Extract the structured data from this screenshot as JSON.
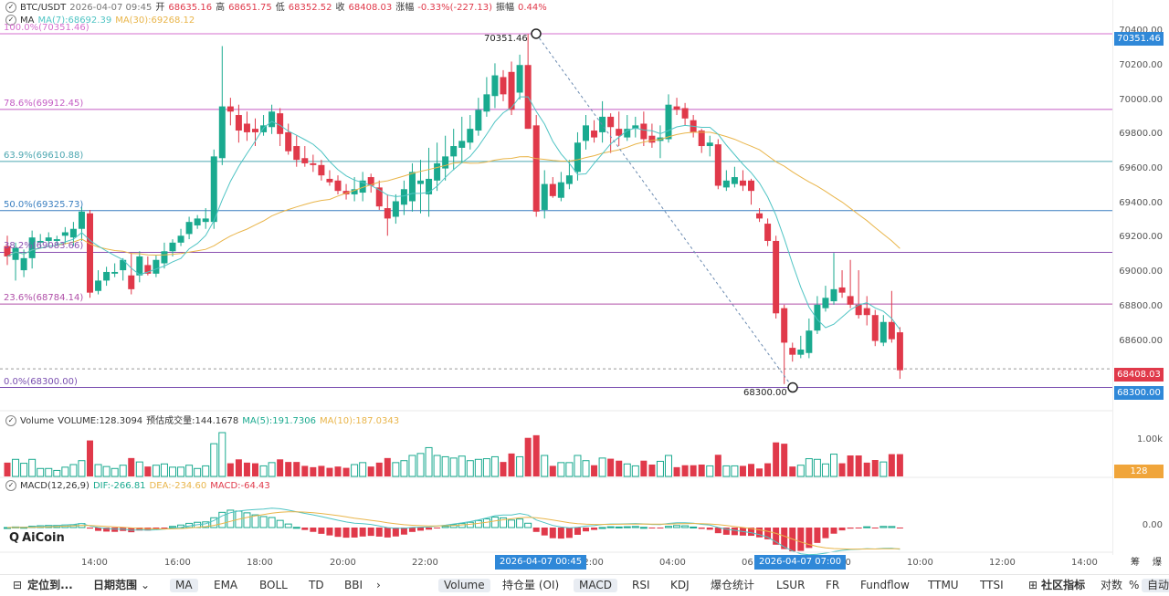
{
  "header": {
    "symbol": "BTC/USDT",
    "datetime": "2026-04-07 09:45",
    "open_label": "开",
    "open": "68635.16",
    "high_label": "高",
    "high": "68651.75",
    "low_label": "低",
    "low": "68352.52",
    "close_label": "收",
    "close": "68408.03",
    "change_label": "涨幅",
    "change": "-0.33%(-227.13)",
    "amp_label": "振幅",
    "amp": "0.44%"
  },
  "ma_legend": {
    "name": "MA",
    "ma7": "MA(7):68692.39",
    "ma30": "MA(30):69268.12"
  },
  "volume_legend": {
    "name": "Volume",
    "volume": "VOLUME:128.3094",
    "forecast": "预估成交量:144.1678",
    "ma5": "MA(5):191.7306",
    "ma10": "MA(10):187.0343"
  },
  "macd_legend": {
    "name": "MACD(12,26,9)",
    "dif": "DIF:-266.81",
    "dea": "DEA:-234.60",
    "macd": "MACD:-64.43"
  },
  "fib_levels": [
    {
      "label": "100.0%(70351.46)",
      "price": 70351.46,
      "color": "#d66fcf"
    },
    {
      "label": "78.6%(69912.45)",
      "price": 69912.45,
      "color": "#c45cc4"
    },
    {
      "label": "63.9%(69610.88)",
      "price": 69610.88,
      "color": "#4ca6b0"
    },
    {
      "label": "50.0%(69325.73)",
      "price": 69325.73,
      "color": "#3a7fc0"
    },
    {
      "label": "38.2%(69083.66)",
      "price": 69083.66,
      "color": "#8a4fb0"
    },
    {
      "label": "23.6%(68784.14)",
      "price": 68784.14,
      "color": "#b04fa8"
    },
    {
      "label": "0.0%(68300.00)",
      "price": 68300.0,
      "color": "#7a4fb0"
    }
  ],
  "price_axis": {
    "ticks": [
      "70400.00",
      "70200.00",
      "70000.00",
      "69800.00",
      "69600.00",
      "69400.00",
      "69200.00",
      "69000.00",
      "68800.00",
      "68600.00"
    ],
    "current_price": "68408.03",
    "high_marker": "70351.46",
    "low_marker": "68300.00",
    "high_point_label": "70351.46",
    "low_point_label": "68300.00"
  },
  "volume_axis": {
    "tick": "1.00k",
    "current": "128"
  },
  "macd_axis": {
    "tick": "0.00"
  },
  "time_axis": {
    "ticks": [
      "14:00",
      "16:00",
      "18:00",
      "20:00",
      "22:00",
      "02:00",
      "04:00",
      "06:00",
      "08:00",
      "10:00",
      "12:00",
      "14:00"
    ],
    "badge_left": "2026-04-07 00:45",
    "badge_right": "2026-04-07 07:00",
    "far_right": [
      "筹",
      "爆"
    ]
  },
  "watermark": "AiCoin",
  "toolbar": {
    "locate": "定位到...",
    "date_range": "日期范围",
    "indicators_main": [
      "MA",
      "EMA",
      "BOLL",
      "TD",
      "BBI"
    ],
    "more": "›",
    "indicators_sub": [
      "Volume",
      "持仓量 (OI)",
      "MACD",
      "RSI",
      "KDJ",
      "爆仓统计",
      "LSUR",
      "FR",
      "Fundflow",
      "TTMU",
      "TTSI"
    ],
    "community": "社区指标",
    "log": "对数",
    "percent": "%",
    "auto": "自动"
  },
  "colors": {
    "up": "#1aaa8f",
    "down": "#e0394a",
    "ma7": "#4fc4c4",
    "ma30": "#e9b54a",
    "accent": "#2f88d8"
  },
  "chart_data": {
    "type": "candlestick",
    "timeframe": "15m",
    "ohlc_approx": [
      [
        69120,
        69060,
        69180,
        69010
      ],
      [
        69040,
        69110,
        69140,
        68920
      ],
      [
        68980,
        69050,
        69100,
        68940
      ],
      [
        69050,
        69170,
        69210,
        68990
      ],
      [
        69140,
        69150,
        69190,
        69110
      ],
      [
        69150,
        69170,
        69200,
        69120
      ],
      [
        69150,
        69160,
        69180,
        69130
      ],
      [
        69180,
        69200,
        69230,
        69130
      ],
      [
        69170,
        69220,
        69260,
        69120
      ],
      [
        69220,
        69320,
        69350,
        69150
      ],
      [
        69310,
        68850,
        69330,
        68820
      ],
      [
        68860,
        68920,
        68980,
        68840
      ],
      [
        68920,
        68970,
        69000,
        68890
      ],
      [
        68960,
        68970,
        69020,
        68940
      ],
      [
        68980,
        69040,
        69050,
        68920
      ],
      [
        68950,
        68870,
        69080,
        68840
      ],
      [
        68950,
        69060,
        69090,
        68910
      ],
      [
        69010,
        68960,
        69060,
        68950
      ],
      [
        68960,
        69040,
        69070,
        68940
      ],
      [
        69020,
        69090,
        69140,
        68990
      ],
      [
        69090,
        69140,
        69160,
        69060
      ],
      [
        69140,
        69180,
        69220,
        69120
      ],
      [
        69190,
        69260,
        69290,
        69160
      ],
      [
        69240,
        69280,
        69300,
        69220
      ],
      [
        69260,
        69280,
        69340,
        69220
      ],
      [
        69260,
        69640,
        69680,
        69220
      ],
      [
        69630,
        69930,
        70280,
        69590
      ],
      [
        69930,
        69900,
        69980,
        69820
      ],
      [
        69880,
        69790,
        69940,
        69720
      ],
      [
        69830,
        69780,
        69900,
        69730
      ],
      [
        69800,
        69780,
        69860,
        69700
      ],
      [
        69780,
        69820,
        69880,
        69760
      ],
      [
        69810,
        69900,
        69940,
        69770
      ],
      [
        69890,
        69770,
        69920,
        69700
      ],
      [
        69780,
        69670,
        69830,
        69650
      ],
      [
        69700,
        69620,
        69760,
        69580
      ],
      [
        69630,
        69600,
        69700,
        69580
      ],
      [
        69600,
        69590,
        69650,
        69550
      ],
      [
        69590,
        69530,
        69620,
        69500
      ],
      [
        69510,
        69490,
        69560,
        69470
      ],
      [
        69500,
        69440,
        69530,
        69420
      ],
      [
        69440,
        69420,
        69480,
        69390
      ],
      [
        69420,
        69450,
        69520,
        69380
      ],
      [
        69430,
        69500,
        69550,
        69380
      ],
      [
        69520,
        69470,
        69540,
        69430
      ],
      [
        69460,
        69350,
        69500,
        69330
      ],
      [
        69340,
        69280,
        69420,
        69180
      ],
      [
        69290,
        69380,
        69420,
        69250
      ],
      [
        69360,
        69450,
        69500,
        69300
      ],
      [
        69380,
        69550,
        69600,
        69320
      ],
      [
        69480,
        69500,
        69620,
        69310
      ],
      [
        69420,
        69510,
        69690,
        69290
      ],
      [
        69500,
        69600,
        69720,
        69440
      ],
      [
        69570,
        69640,
        69760,
        69500
      ],
      [
        69640,
        69700,
        69800,
        69560
      ],
      [
        69690,
        69730,
        69870,
        69600
      ],
      [
        69720,
        69800,
        69880,
        69680
      ],
      [
        69790,
        69910,
        69980,
        69760
      ],
      [
        69900,
        70000,
        70100,
        69870
      ],
      [
        69990,
        70110,
        70180,
        69920
      ],
      [
        70100,
        70000,
        70140,
        69960
      ],
      [
        70130,
        69910,
        70190,
        69880
      ],
      [
        70010,
        70170,
        70230,
        69970
      ],
      [
        70170,
        69800,
        70350,
        69800
      ],
      [
        69820,
        69320,
        69880,
        69290
      ],
      [
        69330,
        69480,
        69560,
        69280
      ],
      [
        69480,
        69410,
        69520,
        69400
      ],
      [
        69400,
        69490,
        69550,
        69380
      ],
      [
        69480,
        69530,
        69620,
        69450
      ],
      [
        69550,
        69720,
        69780,
        69500
      ],
      [
        69730,
        69820,
        69880,
        69680
      ],
      [
        69790,
        69750,
        69850,
        69720
      ],
      [
        69780,
        69870,
        69960,
        69720
      ],
      [
        69870,
        69810,
        69890,
        69660
      ],
      [
        69800,
        69760,
        69900,
        69700
      ],
      [
        69750,
        69800,
        69880,
        69730
      ],
      [
        69800,
        69820,
        69870,
        69750
      ],
      [
        69830,
        69740,
        69900,
        69700
      ],
      [
        69760,
        69720,
        69830,
        69690
      ],
      [
        69730,
        69750,
        69820,
        69630
      ],
      [
        69740,
        69940,
        70000,
        69720
      ],
      [
        69930,
        69910,
        69980,
        69880
      ],
      [
        69920,
        69860,
        69950,
        69820
      ],
      [
        69850,
        69780,
        69880,
        69750
      ],
      [
        69790,
        69700,
        69800,
        69660
      ],
      [
        69700,
        69720,
        69760,
        69640
      ],
      [
        69710,
        69470,
        69740,
        69450
      ],
      [
        69460,
        69500,
        69560,
        69440
      ],
      [
        69480,
        69520,
        69580,
        69460
      ],
      [
        69500,
        69470,
        69560,
        69440
      ],
      [
        69500,
        69440,
        69510,
        69360
      ],
      [
        69310,
        69280,
        69340,
        69260
      ],
      [
        69250,
        69150,
        69280,
        69120
      ],
      [
        69150,
        68730,
        69180,
        68700
      ],
      [
        68760,
        68560,
        68780,
        68320
      ],
      [
        68530,
        68490,
        68560,
        68450
      ],
      [
        68490,
        68520,
        68600,
        68470
      ],
      [
        68500,
        68630,
        68700,
        68470
      ],
      [
        68630,
        68780,
        68830,
        68610
      ],
      [
        68760,
        68820,
        68890,
        68740
      ],
      [
        68800,
        68870,
        69080,
        68780
      ],
      [
        68880,
        68850,
        68980,
        68820
      ],
      [
        68830,
        68780,
        69040,
        68760
      ],
      [
        68780,
        68720,
        68980,
        68700
      ],
      [
        68760,
        68720,
        68830,
        68660
      ],
      [
        68720,
        68570,
        68750,
        68540
      ],
      [
        68560,
        68680,
        68720,
        68540
      ],
      [
        68680,
        68580,
        68860,
        68560
      ],
      [
        68620,
        68400,
        68650,
        68350
      ]
    ],
    "ma7_label": "MA(7)",
    "ma30_label": "MA(30)",
    "price_range": [
      68250,
      70420
    ],
    "fibonacci": {
      "high": 70351.46,
      "low": 68300.0
    }
  }
}
